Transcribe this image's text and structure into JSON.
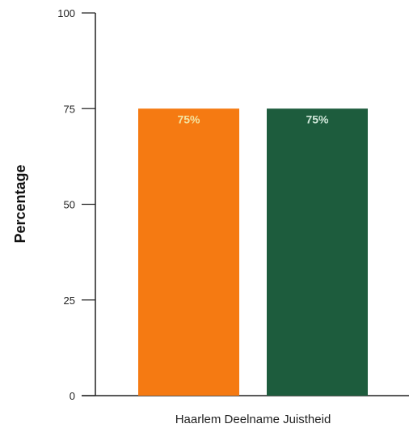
{
  "chart_data": {
    "type": "bar",
    "categories": [
      "Haarlem Deelname Juistheid"
    ],
    "series": [
      {
        "name": "",
        "values": [
          75
        ],
        "color": "#f57a12",
        "label": "75%",
        "label_color": "#f4e3a0"
      },
      {
        "name": "",
        "values": [
          75
        ],
        "color": "#1d5c3d",
        "label": "75%",
        "label_color": "#cfe6d8"
      }
    ],
    "title": "",
    "xlabel": "",
    "ylabel": "Percentage",
    "ylim": [
      0,
      100
    ],
    "yticks": [
      "0",
      "25",
      "50",
      "75",
      "100"
    ],
    "grid": false,
    "legend": "none"
  }
}
